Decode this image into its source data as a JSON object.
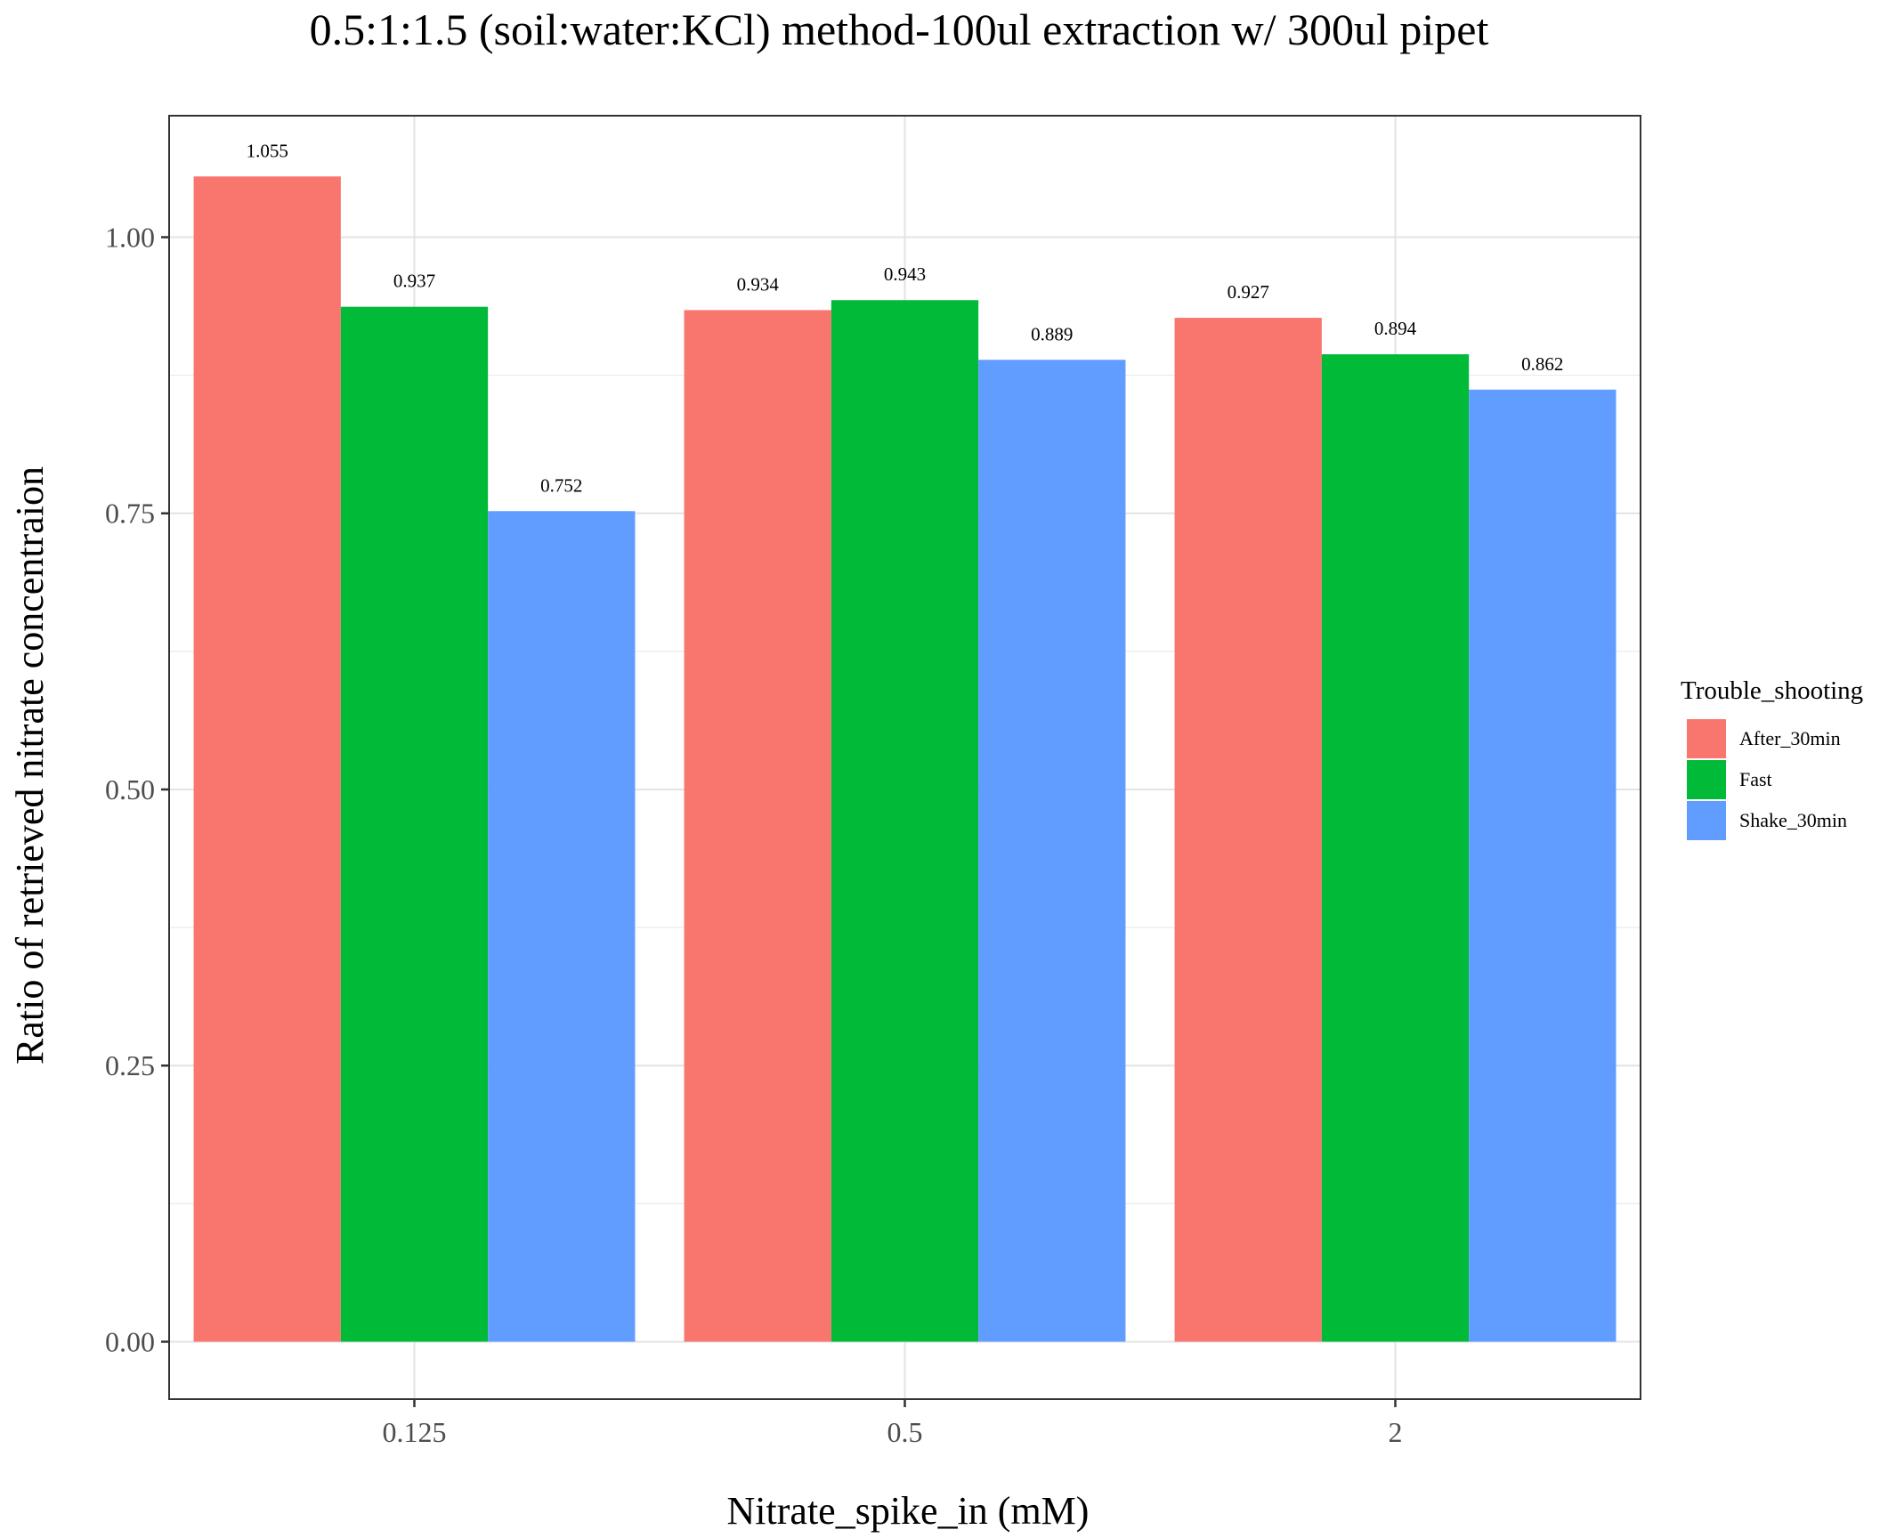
{
  "chart_data": {
    "type": "bar",
    "title": "0.5:1:1.5 (soil:water:KCl) method-100ul extraction w/ 300ul pipet",
    "xlabel": "Nitrate_spike_in (mM)",
    "ylabel": "Ratio of retrieved nitrate concentraion",
    "categories": [
      "0.125",
      "0.5",
      "2"
    ],
    "ylim": [
      -0.052,
      1.11
    ],
    "yticks": [
      0.0,
      0.25,
      0.5,
      0.75,
      1.0
    ],
    "ytick_labels": [
      "0.00",
      "0.25",
      "0.50",
      "0.75",
      "1.00"
    ],
    "grid": true,
    "legend_position": "right",
    "legend_title": "Trouble_shooting",
    "series": [
      {
        "name": "After_30min",
        "color": "#F8766D",
        "values": [
          1.055,
          0.934,
          0.927
        ],
        "labels": [
          "1.055",
          "0.934",
          "0.927"
        ]
      },
      {
        "name": "Fast",
        "color": "#00BA38",
        "values": [
          0.937,
          0.943,
          0.894
        ],
        "labels": [
          "0.937",
          "0.943",
          "0.894"
        ]
      },
      {
        "name": "Shake_30min",
        "color": "#619CFF",
        "values": [
          0.752,
          0.889,
          0.862
        ],
        "labels": [
          "0.752",
          "0.889",
          "0.862"
        ]
      }
    ]
  }
}
